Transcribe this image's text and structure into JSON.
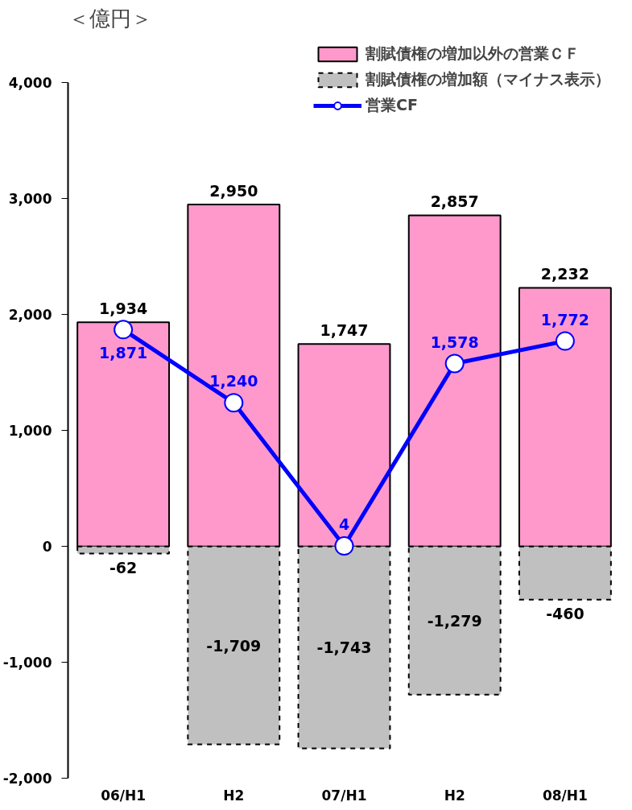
{
  "chart_data": {
    "type": "bar",
    "ylabel": "＜億円＞",
    "categories": [
      "06/H1",
      "H2",
      "07/H1",
      "H2",
      "08/H1"
    ],
    "stacked": true,
    "data_labels": true,
    "grid": false,
    "legend": "top right",
    "ylim": [
      -2000,
      4000
    ],
    "yticks": [
      {
        "value": -2000,
        "label": "-2,000"
      },
      {
        "value": -1000,
        "label": "-1,000"
      },
      0,
      {
        "value": 1000,
        "label": "1,000"
      },
      {
        "value": 2000,
        "label": "2,000"
      },
      {
        "value": 3000,
        "label": "3,000"
      },
      {
        "value": 4000,
        "label": "4,000"
      }
    ],
    "series": [
      {
        "name": "割賦債権の増加以外の営業ＣＦ",
        "type": "bar",
        "color": "#ff99cc",
        "values": [
          1934,
          2950,
          1747,
          2857,
          2232
        ],
        "value_labels": [
          "1,934",
          "2,950",
          "1,747",
          "2,857",
          "2,232"
        ]
      },
      {
        "name": "割賦債権の増加額（マイナス表示）",
        "type": "bar",
        "color": "#c0c0c0",
        "line_style": "dashed",
        "values": [
          -62,
          -1709,
          -1743,
          -1279,
          -460
        ],
        "value_labels": [
          "-62",
          "-1,709",
          "-1,743",
          "-1,279",
          "-460"
        ]
      },
      {
        "name": "営業CF",
        "type": "line",
        "color": "#0000ff",
        "marker": "circle",
        "values": [
          1871,
          1240,
          4,
          1578,
          1772
        ],
        "value_labels": [
          "1,871",
          "1,240",
          "4",
          "1,578",
          "1,772"
        ]
      }
    ]
  }
}
